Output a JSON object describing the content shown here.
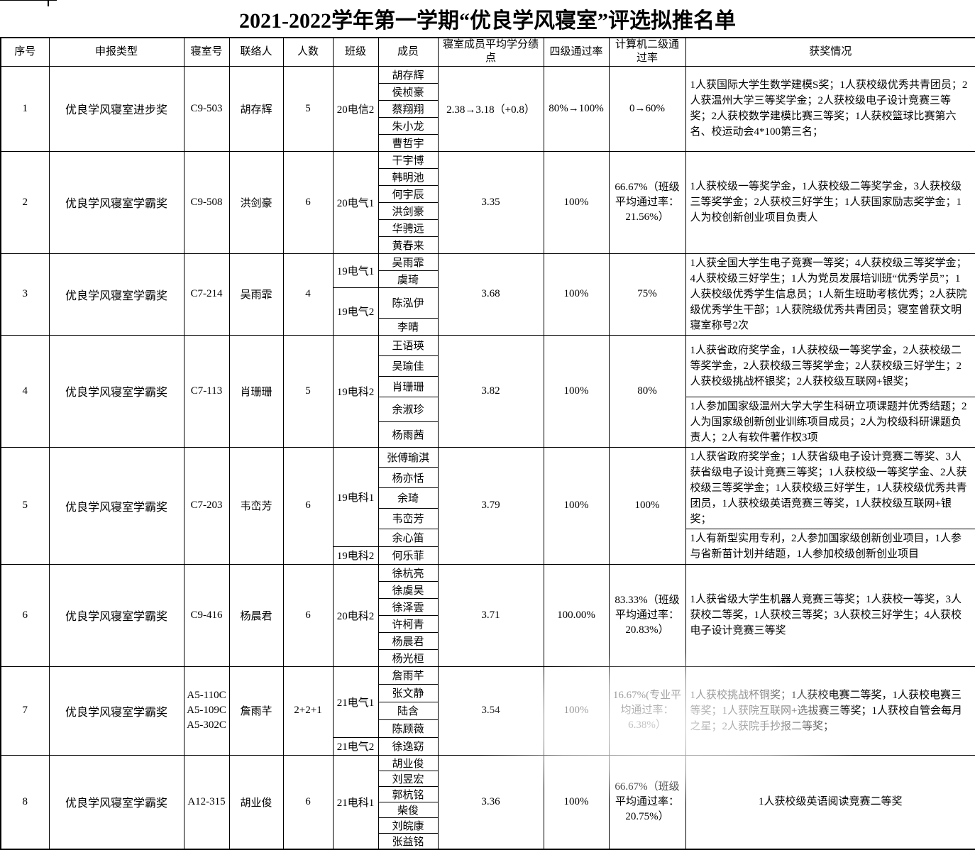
{
  "title": "2021-2022学年第一学期“优良学风寝室”评选拟推名单",
  "table": {
    "headers": [
      "序号",
      "申报类型",
      "寝室号",
      "联络人",
      "人数",
      "班级",
      "成员",
      "寝室成员平均学分绩点",
      "四级通过率",
      "计算机二级通过率",
      "获奖情况"
    ],
    "rows": [
      {
        "no": "1",
        "award_type": "优良学风寝室进步奖",
        "dorm": [
          "C9-503"
        ],
        "contact": "胡存辉",
        "count": "5",
        "class_groups": [
          {
            "class": "20电信2",
            "members": [
              "胡存辉",
              "侯桢豪",
              "蔡翔翔",
              "朱小龙",
              "曹哲宇"
            ]
          }
        ],
        "gpa": "2.38→3.18（+0.8）",
        "cet4": "80%→100%",
        "computer2": "0→60%",
        "awards": [
          {
            "text": "1人获国际大学生数学建模S奖；1人获校级优秀共青团员；2人获温州大学三等奖学金；2人获校级电子设计竞赛三等奖；2人获校数学建模比赛三等奖；1人获校篮球比赛第六名、校运动会4*100第三名；",
            "span": 5
          }
        ]
      },
      {
        "no": "2",
        "award_type": "优良学风寝室学霸奖",
        "dorm": [
          "C9-508"
        ],
        "contact": "洪剑豪",
        "count": "6",
        "class_groups": [
          {
            "class": "20电气1",
            "members": [
              "干宇博",
              "韩明池",
              "何宇辰",
              "洪剑豪",
              "华骋远",
              "黄春来"
            ]
          }
        ],
        "gpa": "3.35",
        "cet4": "100%",
        "computer2": "66.67%（班级平均通过率：21.56%）",
        "awards": [
          {
            "text": "1人获校级一等奖学金，1人获校级二等奖学金，3人获校级三等奖学金；2人获校三好学生；1人获国家励志奖学金；1人为校创新创业项目负责人",
            "span": 6
          }
        ]
      },
      {
        "no": "3",
        "award_type": "优良学风寝室学霸奖",
        "dorm": [
          "C7-214"
        ],
        "contact": "吴雨霏",
        "count": "4",
        "class_groups": [
          {
            "class": "19电气1",
            "members": [
              "吴雨霏",
              "虞琦"
            ]
          },
          {
            "class": "19电气2",
            "members": [
              "陈泓伊",
              "李晴"
            ]
          }
        ],
        "gpa": "3.68",
        "cet4": "100%",
        "computer2": "75%",
        "awards": [
          {
            "text": "1人获全国大学生电子竞赛一等奖；4人获校级三等奖学金；4人获校级三好学生；1人为党员发展培训班“优秀学员”；1人获校级优秀学生信息员；1人新生班助考核优秀；2人获院级优秀学生干部；1人获院级优秀共青团员；寝室曾获文明寝室称号2次",
            "span": 4
          }
        ]
      },
      {
        "no": "4",
        "award_type": "优良学风寝室学霸奖",
        "dorm": [
          "C7-113"
        ],
        "contact": "肖珊珊",
        "count": "5",
        "class_groups": [
          {
            "class": "19电科2",
            "members": [
              "王语瑛",
              "吴瑜佳",
              "肖珊珊",
              "余淑珍",
              "杨雨茜"
            ]
          }
        ],
        "gpa": "3.82",
        "cet4": "100%",
        "computer2": "80%",
        "awards": [
          {
            "text": "1人获省政府奖学金，1人获校级一等奖学金，2人获校级二等奖学金，2人获校级三等奖学金；2人获校级三好学生；2人获校级挑战杯银奖；2人获校级互联网+银奖；",
            "span": 3
          },
          {
            "text": "1人参加国家级温州大学大学生科研立项课题并优秀结题；2人为国家级创新创业训练项目成员；2人为校级科研课题负责人；2人有软件著作权3项",
            "span": 2
          }
        ]
      },
      {
        "no": "5",
        "award_type": "优良学风寝室学霸奖",
        "dorm": [
          "C7-203"
        ],
        "contact": "韦峦芳",
        "count": "6",
        "class_groups": [
          {
            "class": "19电科1",
            "members": [
              "张傅瑜淇",
              "杨亦恬",
              "余琦",
              "韦峦芳",
              "余心笛"
            ]
          },
          {
            "class": "19电科2",
            "members": [
              "何乐菲"
            ]
          }
        ],
        "gpa": "3.79",
        "cet4": "100%",
        "computer2": "100%",
        "awards": [
          {
            "text": "1人获省政府奖学金；1人获省级电子设计竞赛二等奖、3人获省级电子设计竞赛三等奖；1人获校级一等奖学金、2人获校级三等奖学金；1人获校级三好学生，1人获校级优秀共青团员，1人获校级英语竞赛三等奖，1人获校级互联网+银奖；",
            "span": 4
          },
          {
            "text": "1人有新型实用专利，2人参加国家级创新创业项目，1人参与省新苗计划并结题，1人参加校级创新创业项目",
            "span": 2
          }
        ]
      },
      {
        "no": "6",
        "award_type": "优良学风寝室学霸奖",
        "dorm": [
          "C9-416"
        ],
        "contact": "杨晨君",
        "count": "6",
        "class_groups": [
          {
            "class": "20电科2",
            "members": [
              "徐杭亮",
              "徐虞昊",
              "徐泽雲",
              "许柯青",
              "杨晨君",
              "杨光桓"
            ]
          }
        ],
        "gpa": "3.71",
        "cet4": "100.00%",
        "computer2": "83.33%（班级平均通过率：20.83%）",
        "awards": [
          {
            "text": "1人获省级大学生机器人竞赛三等奖；1人获校一等奖，3人获校二等奖，1人获校三等奖；3人获校三好学生；4人获校电子设计竞赛三等奖",
            "span": 6
          }
        ]
      },
      {
        "no": "7",
        "award_type": "优良学风寝室学霸奖",
        "dorm": [
          "A5-110C",
          "A5-109C",
          "A5-302C"
        ],
        "contact": "詹雨芊",
        "count": "2+2+1",
        "class_groups": [
          {
            "class": "21电气1",
            "members": [
              "詹雨芊",
              "张文静",
              "陆含",
              "陈顾薇"
            ]
          },
          {
            "class": "21电气2",
            "members": [
              "徐逸窈"
            ]
          }
        ],
        "gpa": "3.54",
        "cet4": "100%",
        "computer2": "16.67%(专业平均通过率：6.38%）",
        "awards": [
          {
            "text": "1人获校挑战杯铜奖；1人获校电赛二等奖，1人获校电赛三等奖；1人获院互联网+选拔赛三等奖；1人获校自管会每月之星；2人获院手抄报二等奖；",
            "span": 5
          }
        ]
      },
      {
        "no": "8",
        "award_type": "优良学风寝室学霸奖",
        "dorm": [
          "A12-315"
        ],
        "contact": "胡业俊",
        "count": "6",
        "class_groups": [
          {
            "class": "21电科1",
            "members": [
              "胡业俊",
              "刘昱宏",
              "郭杭铭",
              "柴俊",
              "刘皖康",
              "张益铭"
            ]
          }
        ],
        "gpa": "3.36",
        "cet4": "100%",
        "computer2": "66.67%（班级平均通过率：20.75%）",
        "awards": [
          {
            "text": "1人获校级英语阅读竞赛二等奖",
            "span": 6
          }
        ],
        "awards_align": "center"
      }
    ]
  }
}
